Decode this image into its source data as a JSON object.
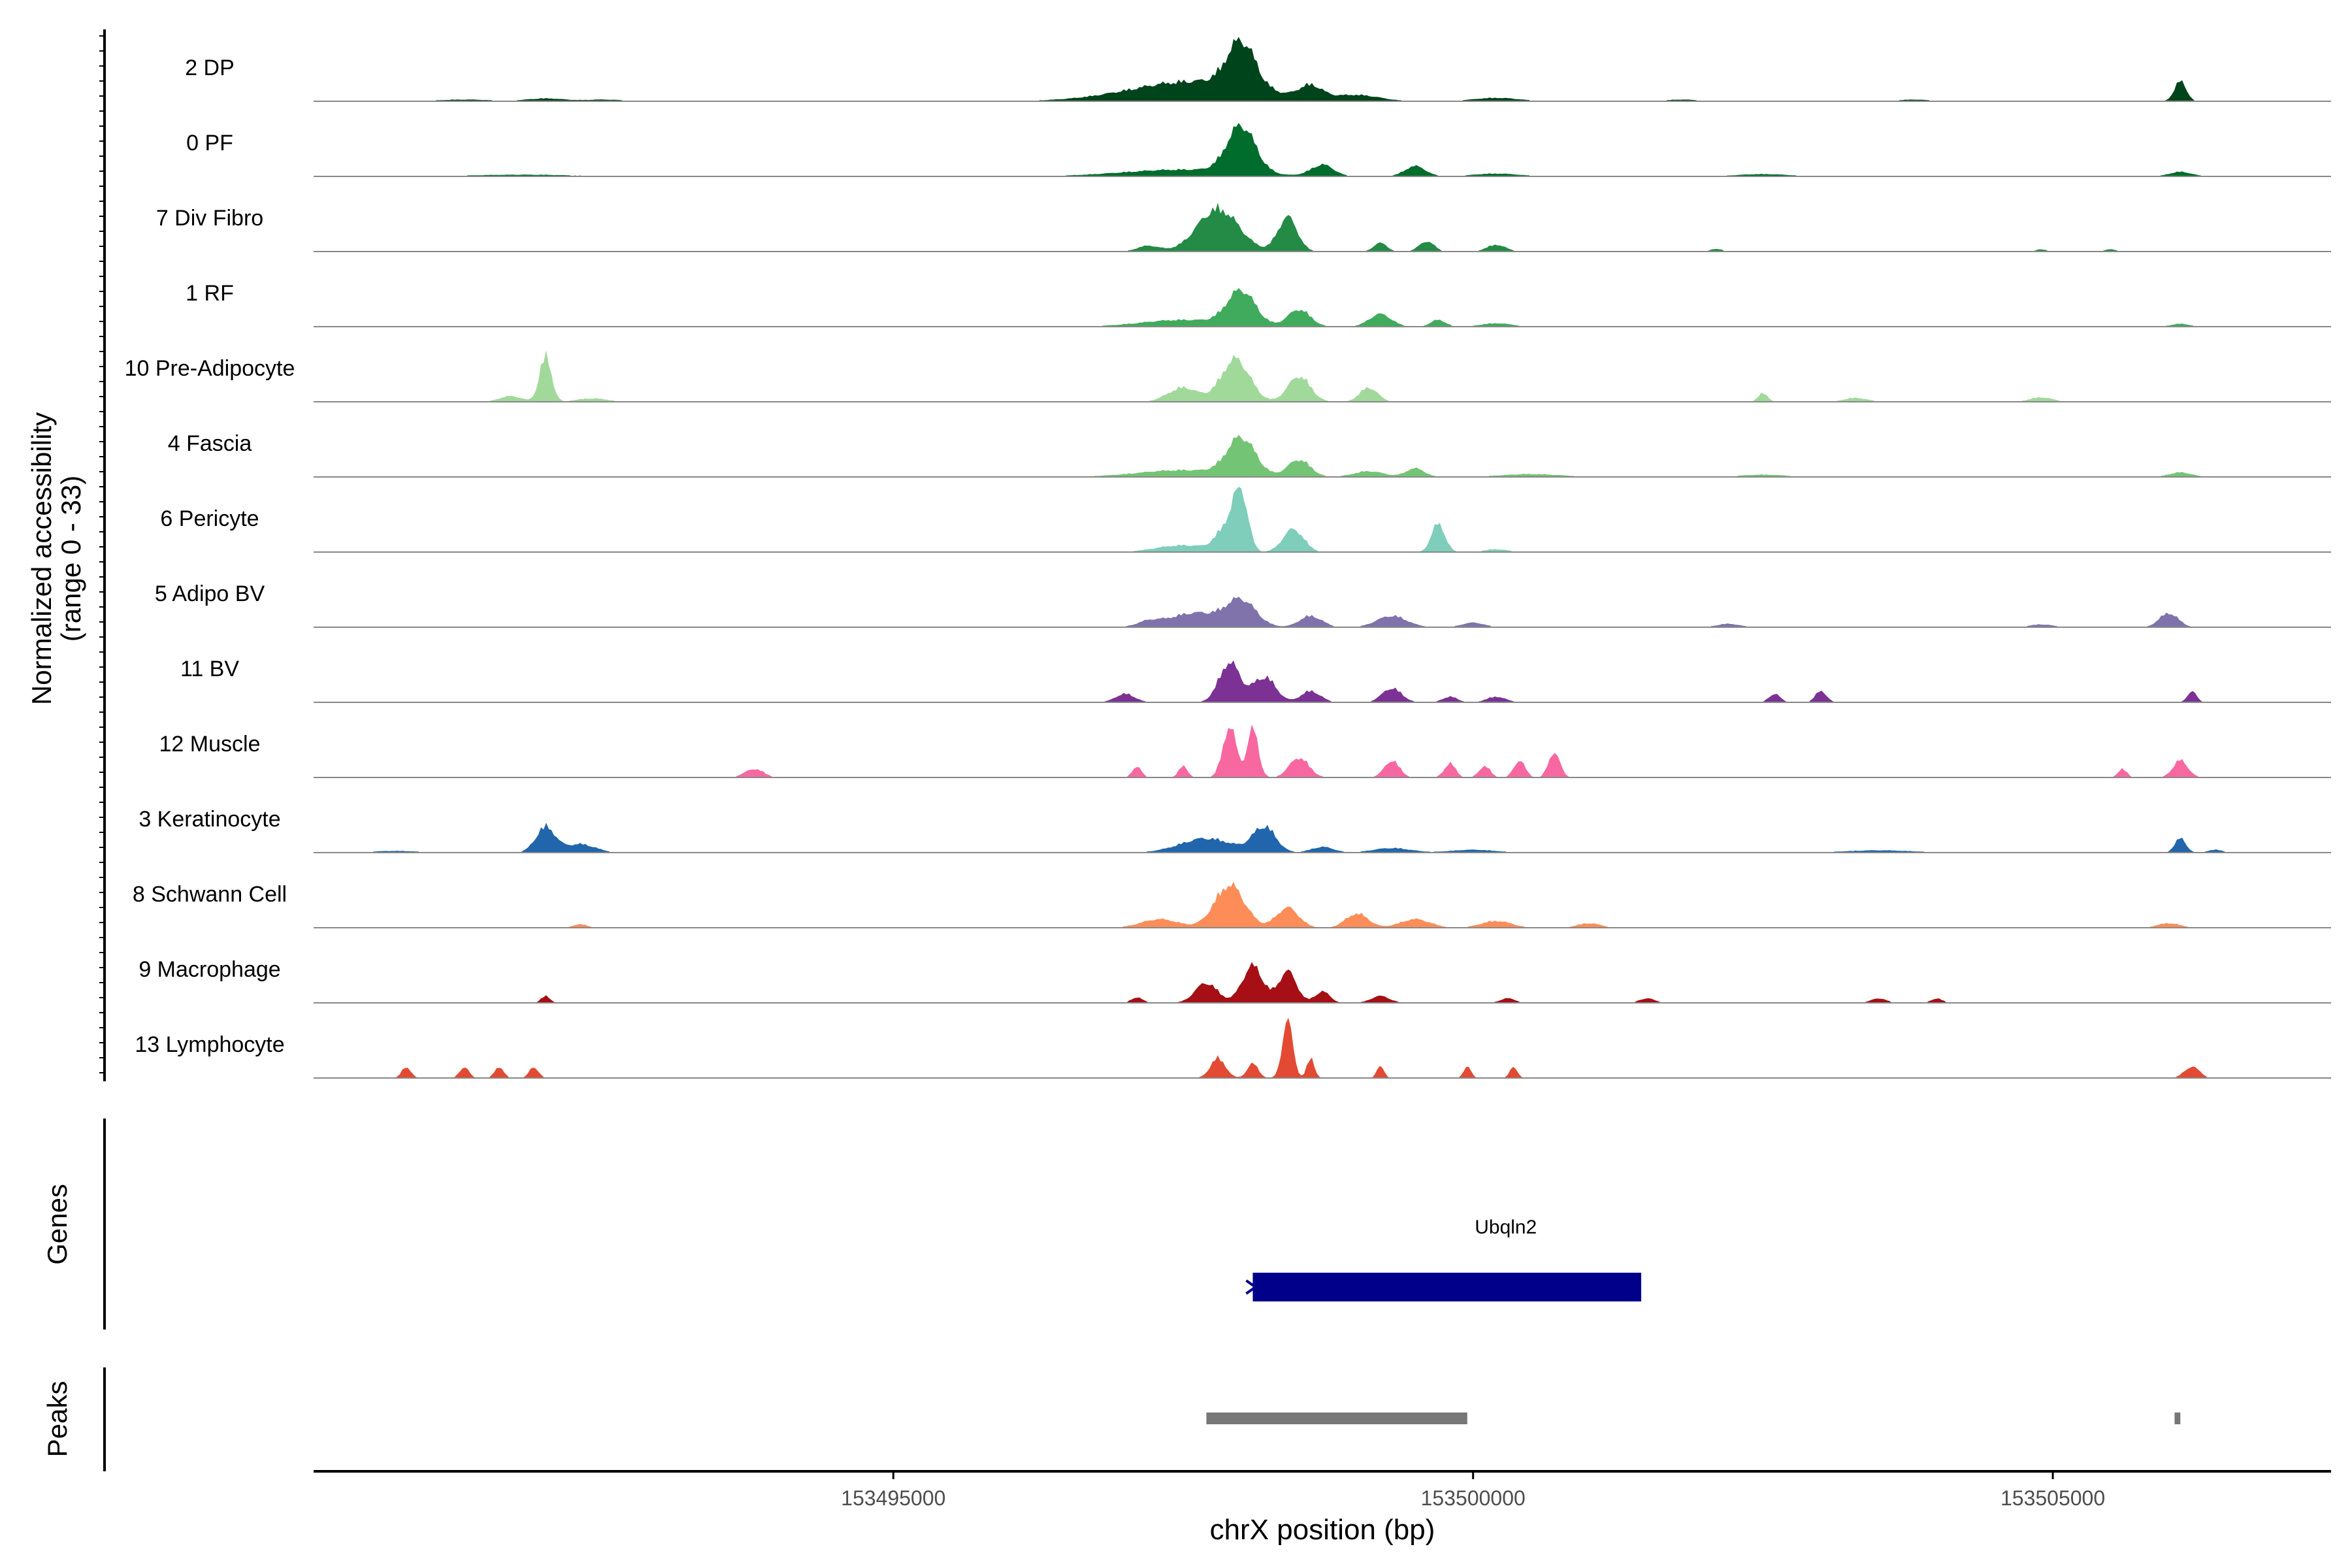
{
  "chart_data": {
    "type": "area",
    "title": "",
    "ylabel_line1": "Normalized accessibility",
    "ylabel_line2": "(range 0 - 33)",
    "ylim": [
      0,
      33
    ],
    "xlabel": "chrX position (bp)",
    "xlim": [
      153490000,
      153507400
    ],
    "x_ticks": [
      153495000,
      153500000,
      153505000
    ],
    "x_tick_labels": [
      "153495000",
      "153500000",
      "153505000"
    ],
    "peak_units": "track-max fraction",
    "series": [
      {
        "name": "2 DP",
        "color": "#00441b",
        "peaks": [
          [
            153491300,
            0.03,
            700
          ],
          [
            153492000,
            0.05,
            500
          ],
          [
            153492500,
            0.03,
            500
          ],
          [
            153497600,
            0.35,
            1700
          ],
          [
            153498000,
            0.8,
            380
          ],
          [
            153498600,
            0.22,
            300
          ],
          [
            153499000,
            0.1,
            600
          ],
          [
            153500200,
            0.06,
            600
          ],
          [
            153501800,
            0.03,
            400
          ],
          [
            153503800,
            0.03,
            400
          ],
          [
            153506100,
            0.35,
            160
          ]
        ]
      },
      {
        "name": "0 PF",
        "color": "#006d2c",
        "peaks": [
          [
            153491800,
            0.03,
            1400
          ],
          [
            153497500,
            0.12,
            1600
          ],
          [
            153498000,
            0.82,
            380
          ],
          [
            153498700,
            0.2,
            300
          ],
          [
            153499500,
            0.18,
            280
          ],
          [
            153500200,
            0.05,
            600
          ],
          [
            153502500,
            0.04,
            700
          ],
          [
            153506100,
            0.08,
            300
          ]
        ]
      },
      {
        "name": "7 Div Fibro",
        "color": "#238b45",
        "peaks": [
          [
            153497200,
            0.1,
            300
          ],
          [
            153497800,
            0.75,
            550
          ],
          [
            153498400,
            0.6,
            260
          ],
          [
            153499200,
            0.15,
            180
          ],
          [
            153499600,
            0.18,
            200
          ],
          [
            153500200,
            0.12,
            250
          ],
          [
            153502100,
            0.05,
            150
          ],
          [
            153504900,
            0.04,
            150
          ],
          [
            153505500,
            0.04,
            150
          ]
        ]
      },
      {
        "name": "1 RF",
        "color": "#41ab5d",
        "peaks": [
          [
            153497500,
            0.12,
            1100
          ],
          [
            153498000,
            0.6,
            380
          ],
          [
            153498500,
            0.3,
            300
          ],
          [
            153499200,
            0.22,
            300
          ],
          [
            153499700,
            0.12,
            200
          ],
          [
            153500200,
            0.06,
            400
          ],
          [
            153506100,
            0.05,
            250
          ]
        ]
      },
      {
        "name": "10 Pre-Adipocyte",
        "color": "#a1d99b",
        "peaks": [
          [
            153492000,
            0.8,
            160
          ],
          [
            153491700,
            0.1,
            300
          ],
          [
            153492400,
            0.06,
            400
          ],
          [
            153497500,
            0.25,
            400
          ],
          [
            153497950,
            0.75,
            380
          ],
          [
            153498500,
            0.45,
            300
          ],
          [
            153499100,
            0.25,
            240
          ],
          [
            153502500,
            0.15,
            130
          ],
          [
            153503300,
            0.07,
            300
          ],
          [
            153504900,
            0.08,
            300
          ]
        ]
      },
      {
        "name": "4 Fascia",
        "color": "#74c476",
        "peaks": [
          [
            153497500,
            0.12,
            1200
          ],
          [
            153498000,
            0.65,
            380
          ],
          [
            153498500,
            0.3,
            300
          ],
          [
            153499100,
            0.1,
            400
          ],
          [
            153499500,
            0.15,
            250
          ],
          [
            153500500,
            0.05,
            800
          ],
          [
            153502500,
            0.04,
            600
          ],
          [
            153506100,
            0.08,
            300
          ]
        ]
      },
      {
        "name": "6 Pericyte",
        "color": "#7fcdbb",
        "peaks": [
          [
            153497500,
            0.12,
            700
          ],
          [
            153497900,
            0.5,
            300
          ],
          [
            153498000,
            0.85,
            180
          ],
          [
            153498450,
            0.4,
            280
          ],
          [
            153499700,
            0.5,
            180
          ],
          [
            153500200,
            0.05,
            300
          ]
        ]
      },
      {
        "name": "5 Adipo BV",
        "color": "#8073ac",
        "peaks": [
          [
            153497200,
            0.08,
            300
          ],
          [
            153497600,
            0.25,
            700
          ],
          [
            153498000,
            0.45,
            400
          ],
          [
            153498600,
            0.2,
            300
          ],
          [
            153499300,
            0.2,
            400
          ],
          [
            153500000,
            0.08,
            300
          ],
          [
            153502200,
            0.06,
            300
          ],
          [
            153504900,
            0.05,
            300
          ],
          [
            153506000,
            0.25,
            250
          ]
        ]
      },
      {
        "name": "11 BV",
        "color": "#7b3294",
        "peaks": [
          [
            153497000,
            0.15,
            260
          ],
          [
            153497900,
            0.7,
            280
          ],
          [
            153498200,
            0.45,
            300
          ],
          [
            153498600,
            0.2,
            260
          ],
          [
            153499300,
            0.25,
            260
          ],
          [
            153499800,
            0.1,
            200
          ],
          [
            153500200,
            0.1,
            250
          ],
          [
            153502600,
            0.15,
            150
          ],
          [
            153503000,
            0.2,
            150
          ],
          [
            153506200,
            0.2,
            120
          ]
        ]
      },
      {
        "name": "12 Muscle",
        "color": "#f768a1",
        "peaks": [
          [
            153497100,
            0.2,
            120
          ],
          [
            153497500,
            0.2,
            120
          ],
          [
            153497900,
            0.9,
            180
          ],
          [
            153498100,
            0.85,
            150
          ],
          [
            153498500,
            0.35,
            260
          ],
          [
            153499300,
            0.3,
            200
          ],
          [
            153499800,
            0.25,
            150
          ],
          [
            153500100,
            0.2,
            150
          ],
          [
            153500400,
            0.3,
            150
          ],
          [
            153500700,
            0.45,
            150
          ],
          [
            153493800,
            0.15,
            250
          ],
          [
            153505600,
            0.15,
            120
          ],
          [
            153506100,
            0.3,
            200
          ]
        ]
      },
      {
        "name": "3 Keratinocyte",
        "color": "#2166ac",
        "peaks": [
          [
            153492000,
            0.45,
            260
          ],
          [
            153492300,
            0.15,
            400
          ],
          [
            153490700,
            0.03,
            600
          ],
          [
            153497700,
            0.25,
            700
          ],
          [
            153498200,
            0.45,
            300
          ],
          [
            153498700,
            0.1,
            300
          ],
          [
            153499300,
            0.08,
            500
          ],
          [
            153500000,
            0.05,
            600
          ],
          [
            153503500,
            0.04,
            900
          ],
          [
            153506100,
            0.25,
            150
          ],
          [
            153506400,
            0.05,
            200
          ]
        ]
      },
      {
        "name": "8 Schwann Cell",
        "color": "#fc8d59",
        "peaks": [
          [
            153497300,
            0.15,
            500
          ],
          [
            153497900,
            0.75,
            400
          ],
          [
            153498400,
            0.35,
            300
          ],
          [
            153499000,
            0.25,
            300
          ],
          [
            153499500,
            0.15,
            400
          ],
          [
            153500200,
            0.12,
            400
          ],
          [
            153501000,
            0.08,
            300
          ],
          [
            153492300,
            0.06,
            200
          ],
          [
            153506000,
            0.08,
            300
          ]
        ]
      },
      {
        "name": "9 Macrophage",
        "color": "#a50f15",
        "peaks": [
          [
            153497100,
            0.1,
            150
          ],
          [
            153497700,
            0.35,
            300
          ],
          [
            153498100,
            0.65,
            280
          ],
          [
            153498400,
            0.55,
            240
          ],
          [
            153498700,
            0.2,
            200
          ],
          [
            153499200,
            0.12,
            250
          ],
          [
            153500300,
            0.08,
            200
          ],
          [
            153492000,
            0.12,
            120
          ],
          [
            153501500,
            0.08,
            200
          ],
          [
            153503500,
            0.08,
            200
          ],
          [
            153504000,
            0.08,
            150
          ]
        ]
      },
      {
        "name": "13 Lymphocyte",
        "color": "#e34a33",
        "peaks": [
          [
            153490800,
            0.2,
            120
          ],
          [
            153491300,
            0.2,
            120
          ],
          [
            153491600,
            0.2,
            120
          ],
          [
            153491900,
            0.2,
            120
          ],
          [
            153497800,
            0.35,
            200
          ],
          [
            153498100,
            0.25,
            150
          ],
          [
            153498400,
            1.0,
            140
          ],
          [
            153498600,
            0.35,
            100
          ],
          [
            153499200,
            0.2,
            100
          ],
          [
            153499950,
            0.2,
            100
          ],
          [
            153500350,
            0.2,
            100
          ],
          [
            153506200,
            0.2,
            200
          ]
        ]
      }
    ],
    "genes": {
      "label": "Genes",
      "items": [
        {
          "name": "Ubqln2",
          "start": 153498100,
          "end": 153501450,
          "strand": "+",
          "color": "#00008b"
        }
      ]
    },
    "peaks_track": {
      "label": "Peaks",
      "color": "#777777",
      "items": [
        {
          "start": 153497700,
          "end": 153499950
        },
        {
          "start": 153506050,
          "end": 153506100
        }
      ]
    }
  }
}
